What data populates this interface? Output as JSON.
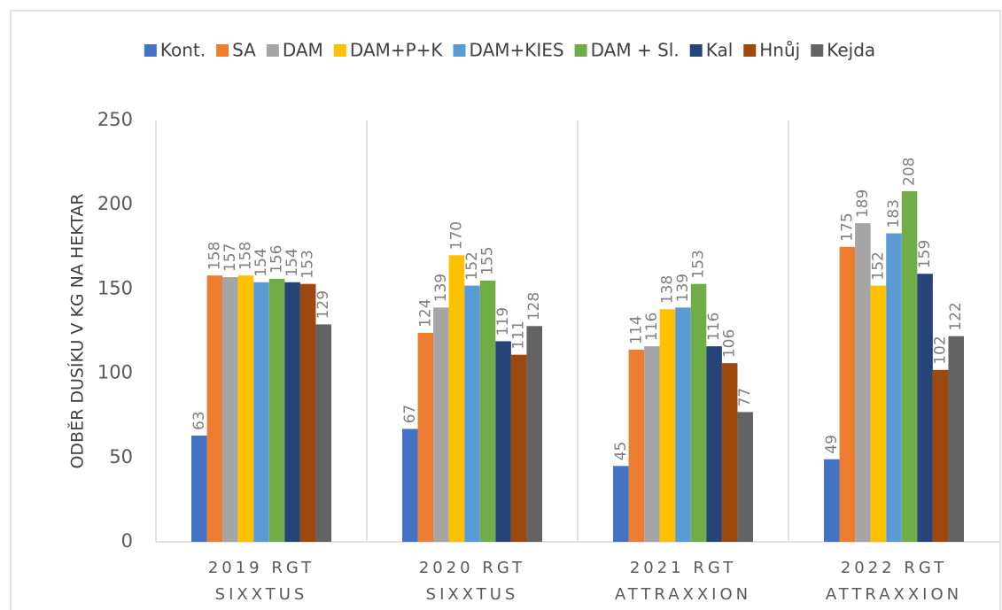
{
  "chart_data": {
    "type": "bar",
    "y_label": "ODBĚR DUSÍKU V KG NA HEKTAR",
    "categories": [
      "2019 RGT\nSIXXTUS",
      "2020 RGT\nSIXXTUS",
      "2021 RGT\nATTRAXXION",
      "2022 RGT\nATTRAXXION"
    ],
    "series": [
      {
        "name": "Kont.",
        "color": "#4472c4",
        "values": [
          63,
          67,
          45,
          49
        ]
      },
      {
        "name": "SA",
        "color": "#ed7d31",
        "values": [
          158,
          124,
          114,
          175
        ]
      },
      {
        "name": "DAM",
        "color": "#a5a5a5",
        "values": [
          157,
          139,
          116,
          189
        ]
      },
      {
        "name": "DAM+P+K",
        "color": "#ffc000",
        "values": [
          158,
          170,
          138,
          152
        ]
      },
      {
        "name": "DAM+KIES",
        "color": "#5b9bd5",
        "values": [
          154,
          152,
          139,
          183
        ]
      },
      {
        "name": "DAM + Sl.",
        "color": "#70ad47",
        "values": [
          156,
          155,
          153,
          208
        ]
      },
      {
        "name": "Kal",
        "color": "#264478",
        "values": [
          154,
          119,
          116,
          159
        ]
      },
      {
        "name": "Hnůj",
        "color": "#9e480e",
        "values": [
          153,
          111,
          106,
          102
        ]
      },
      {
        "name": "Kejda",
        "color": "#636363",
        "values": [
          129,
          128,
          77,
          122
        ]
      }
    ],
    "ylim": [
      0,
      250
    ],
    "yticks": [
      0,
      50,
      100,
      150,
      200,
      250
    ],
    "legend": "top",
    "data_labels": true
  }
}
